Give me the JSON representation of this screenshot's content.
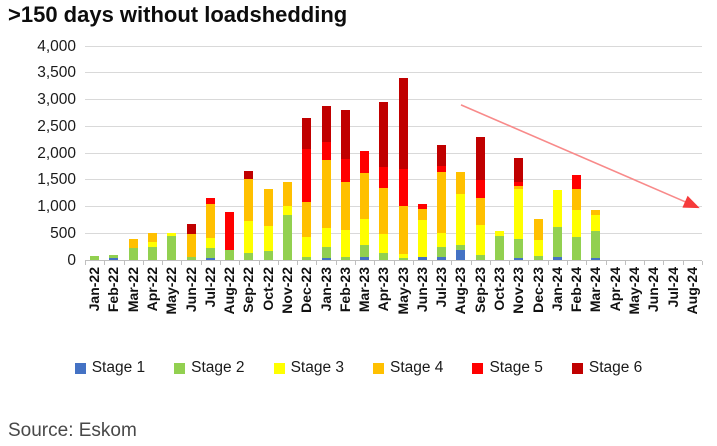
{
  "page": {
    "title": ">150 days without loadshedding",
    "source": "Source: Eskom"
  },
  "chart_data": {
    "type": "bar",
    "stacked": true,
    "title": ">150 days without loadshedding",
    "xlabel": "",
    "ylabel": "",
    "ylim": [
      0,
      4000
    ],
    "ytick_step": 500,
    "y_tick_labels": [
      "0",
      "500",
      "1,000",
      "1,500",
      "2,000",
      "2,500",
      "3,000",
      "3,500",
      "4,000"
    ],
    "grid": true,
    "legend_position": "bottom",
    "source": "Source: Eskom",
    "categories": [
      "Jan-22",
      "Feb-22",
      "Mar-22",
      "Apr-22",
      "May-22",
      "Jun-22",
      "Jul-22",
      "Aug-22",
      "Sep-22",
      "Oct-22",
      "Nov-22",
      "Dec-22",
      "Jan-23",
      "Feb-23",
      "Mar-23",
      "Apr-23",
      "May-23",
      "Jun-23",
      "Jul-23",
      "Aug-23",
      "Sep-23",
      "Oct-23",
      "Nov-23",
      "Dec-23",
      "Jan-24",
      "Feb-24",
      "Mar-24",
      "Apr-24",
      "May-24",
      "Jun-24",
      "Jul-24",
      "Aug-24"
    ],
    "series": [
      {
        "name": "Stage 1",
        "color": "#4472C4",
        "values": [
          0,
          30,
          0,
          0,
          0,
          0,
          30,
          0,
          0,
          0,
          0,
          0,
          30,
          0,
          50,
          0,
          0,
          50,
          50,
          180,
          0,
          0,
          30,
          0,
          50,
          0,
          30,
          0,
          0,
          0,
          0,
          0
        ]
      },
      {
        "name": "Stage 2",
        "color": "#92D050",
        "values": [
          70,
          60,
          220,
          250,
          450,
          60,
          200,
          190,
          140,
          170,
          850,
          50,
          220,
          60,
          230,
          140,
          30,
          0,
          200,
          100,
          90,
          450,
          370,
          80,
          570,
          430,
          520,
          0,
          0,
          0,
          0,
          0
        ]
      },
      {
        "name": "Stage 3",
        "color": "#FFFF00",
        "values": [
          0,
          0,
          0,
          80,
          50,
          0,
          180,
          0,
          590,
          470,
          160,
          380,
          340,
          500,
          480,
          350,
          90,
          690,
          250,
          950,
          560,
          100,
          930,
          290,
          680,
          500,
          300,
          0,
          0,
          0,
          0,
          0
        ]
      },
      {
        "name": "Stage 4",
        "color": "#FFC000",
        "values": [
          0,
          0,
          180,
          170,
          0,
          420,
          640,
          0,
          790,
          680,
          450,
          650,
          1280,
          900,
          860,
          850,
          890,
          220,
          1150,
          410,
          500,
          0,
          50,
          400,
          0,
          400,
          80,
          0,
          0,
          0,
          0,
          0
        ]
      },
      {
        "name": "Stage 5",
        "color": "#FF0000",
        "values": [
          0,
          0,
          0,
          0,
          0,
          0,
          100,
          700,
          0,
          0,
          0,
          1000,
          340,
          420,
          410,
          400,
          700,
          90,
          100,
          0,
          340,
          0,
          80,
          0,
          0,
          250,
          0,
          0,
          0,
          0,
          0,
          0
        ]
      },
      {
        "name": "Stage 6",
        "color": "#C00000",
        "values": [
          0,
          0,
          0,
          0,
          0,
          190,
          0,
          0,
          150,
          0,
          0,
          570,
          660,
          920,
          0,
          1210,
          1690,
          0,
          400,
          0,
          810,
          0,
          440,
          0,
          0,
          0,
          0,
          0,
          0,
          0,
          0,
          0
        ]
      }
    ],
    "annotation_arrow": {
      "from": {
        "category": "Aug-23",
        "value": 2900
      },
      "to": {
        "category": "Aug-24",
        "value": 1030
      },
      "line_color": "#F88A8A",
      "head_color": "#F63B3B"
    }
  }
}
